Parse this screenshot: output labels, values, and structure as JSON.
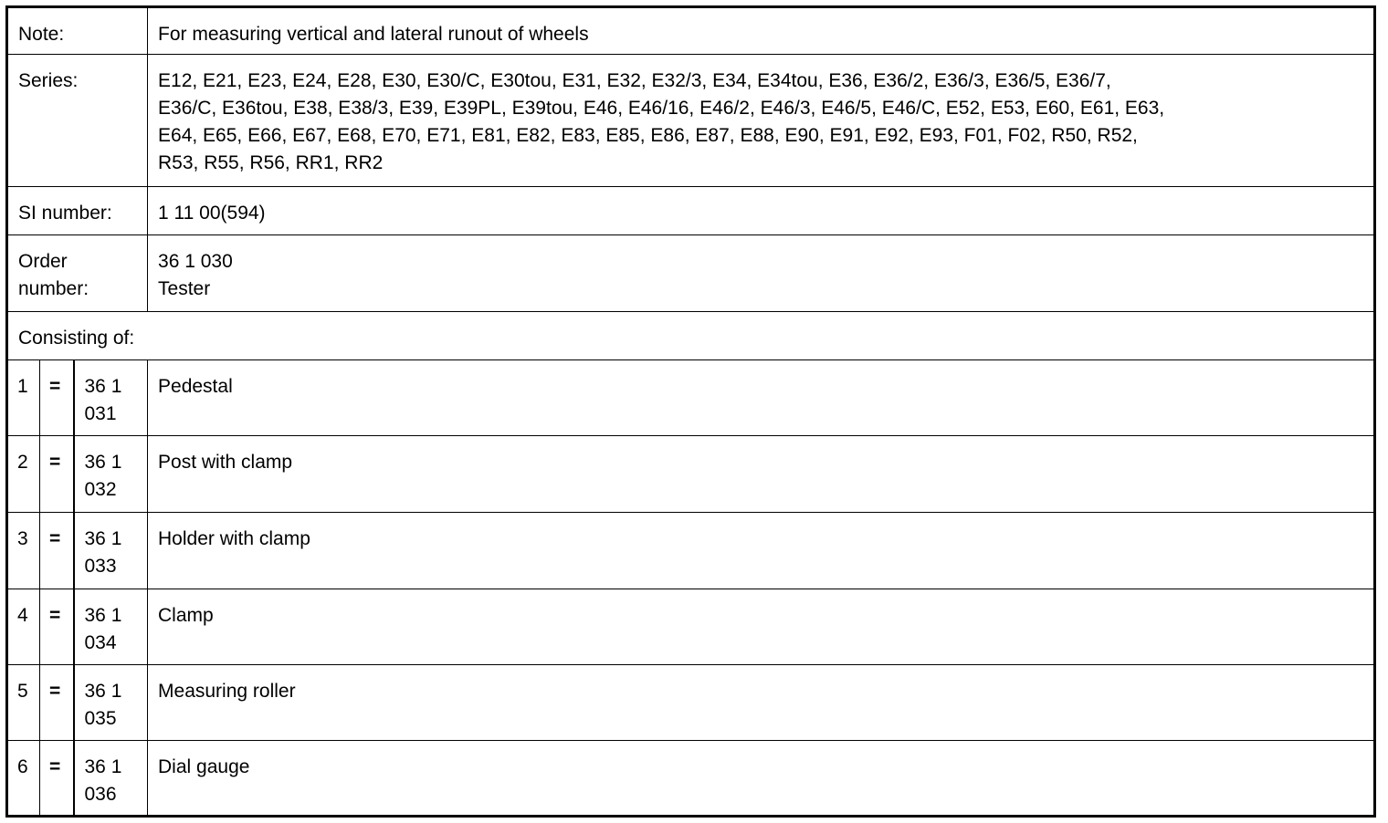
{
  "note": {
    "label": "Note:",
    "value": "For measuring vertical and lateral runout of wheels"
  },
  "series": {
    "label": "Series:",
    "lines": [
      "E12, E21, E23, E24, E28, E30, E30/C, E30tou, E31, E32, E32/3, E34, E34tou, E36, E36/2, E36/3, E36/5, E36/7,",
      "E36/C, E36tou, E38, E38/3, E39, E39PL, E39tou, E46, E46/16, E46/2, E46/3, E46/5, E46/C, E52, E53, E60, E61, E63,",
      "E64, E65, E66, E67, E68, E70, E71, E81, E82, E83, E85, E86, E87, E88, E90, E91, E92, E93, F01, F02, R50, R52,",
      "R53, R55, R56, RR1, RR2"
    ]
  },
  "si_number": {
    "label": "SI number:",
    "value": "1 11 00(594)"
  },
  "order_number": {
    "label_lines": [
      "Order",
      "number:"
    ],
    "value_lines": [
      "36 1 030",
      "Tester"
    ]
  },
  "consisting_of": {
    "label": "Consisting of:"
  },
  "parts": [
    {
      "index": "1",
      "eq": "=",
      "code_lines": [
        "36 1",
        "031"
      ],
      "name": "Pedestal"
    },
    {
      "index": "2",
      "eq": "=",
      "code_lines": [
        "36 1",
        "032"
      ],
      "name": "Post with clamp"
    },
    {
      "index": "3",
      "eq": "=",
      "code_lines": [
        "36 1",
        "033"
      ],
      "name": "Holder with clamp"
    },
    {
      "index": "4",
      "eq": "=",
      "code_lines": [
        "36 1",
        "034"
      ],
      "name": "Clamp"
    },
    {
      "index": "5",
      "eq": "=",
      "code_lines": [
        "36 1",
        "035"
      ],
      "name": "Measuring roller"
    },
    {
      "index": "6",
      "eq": "=",
      "code_lines": [
        "36 1",
        "036"
      ],
      "name": "Dial gauge"
    }
  ]
}
